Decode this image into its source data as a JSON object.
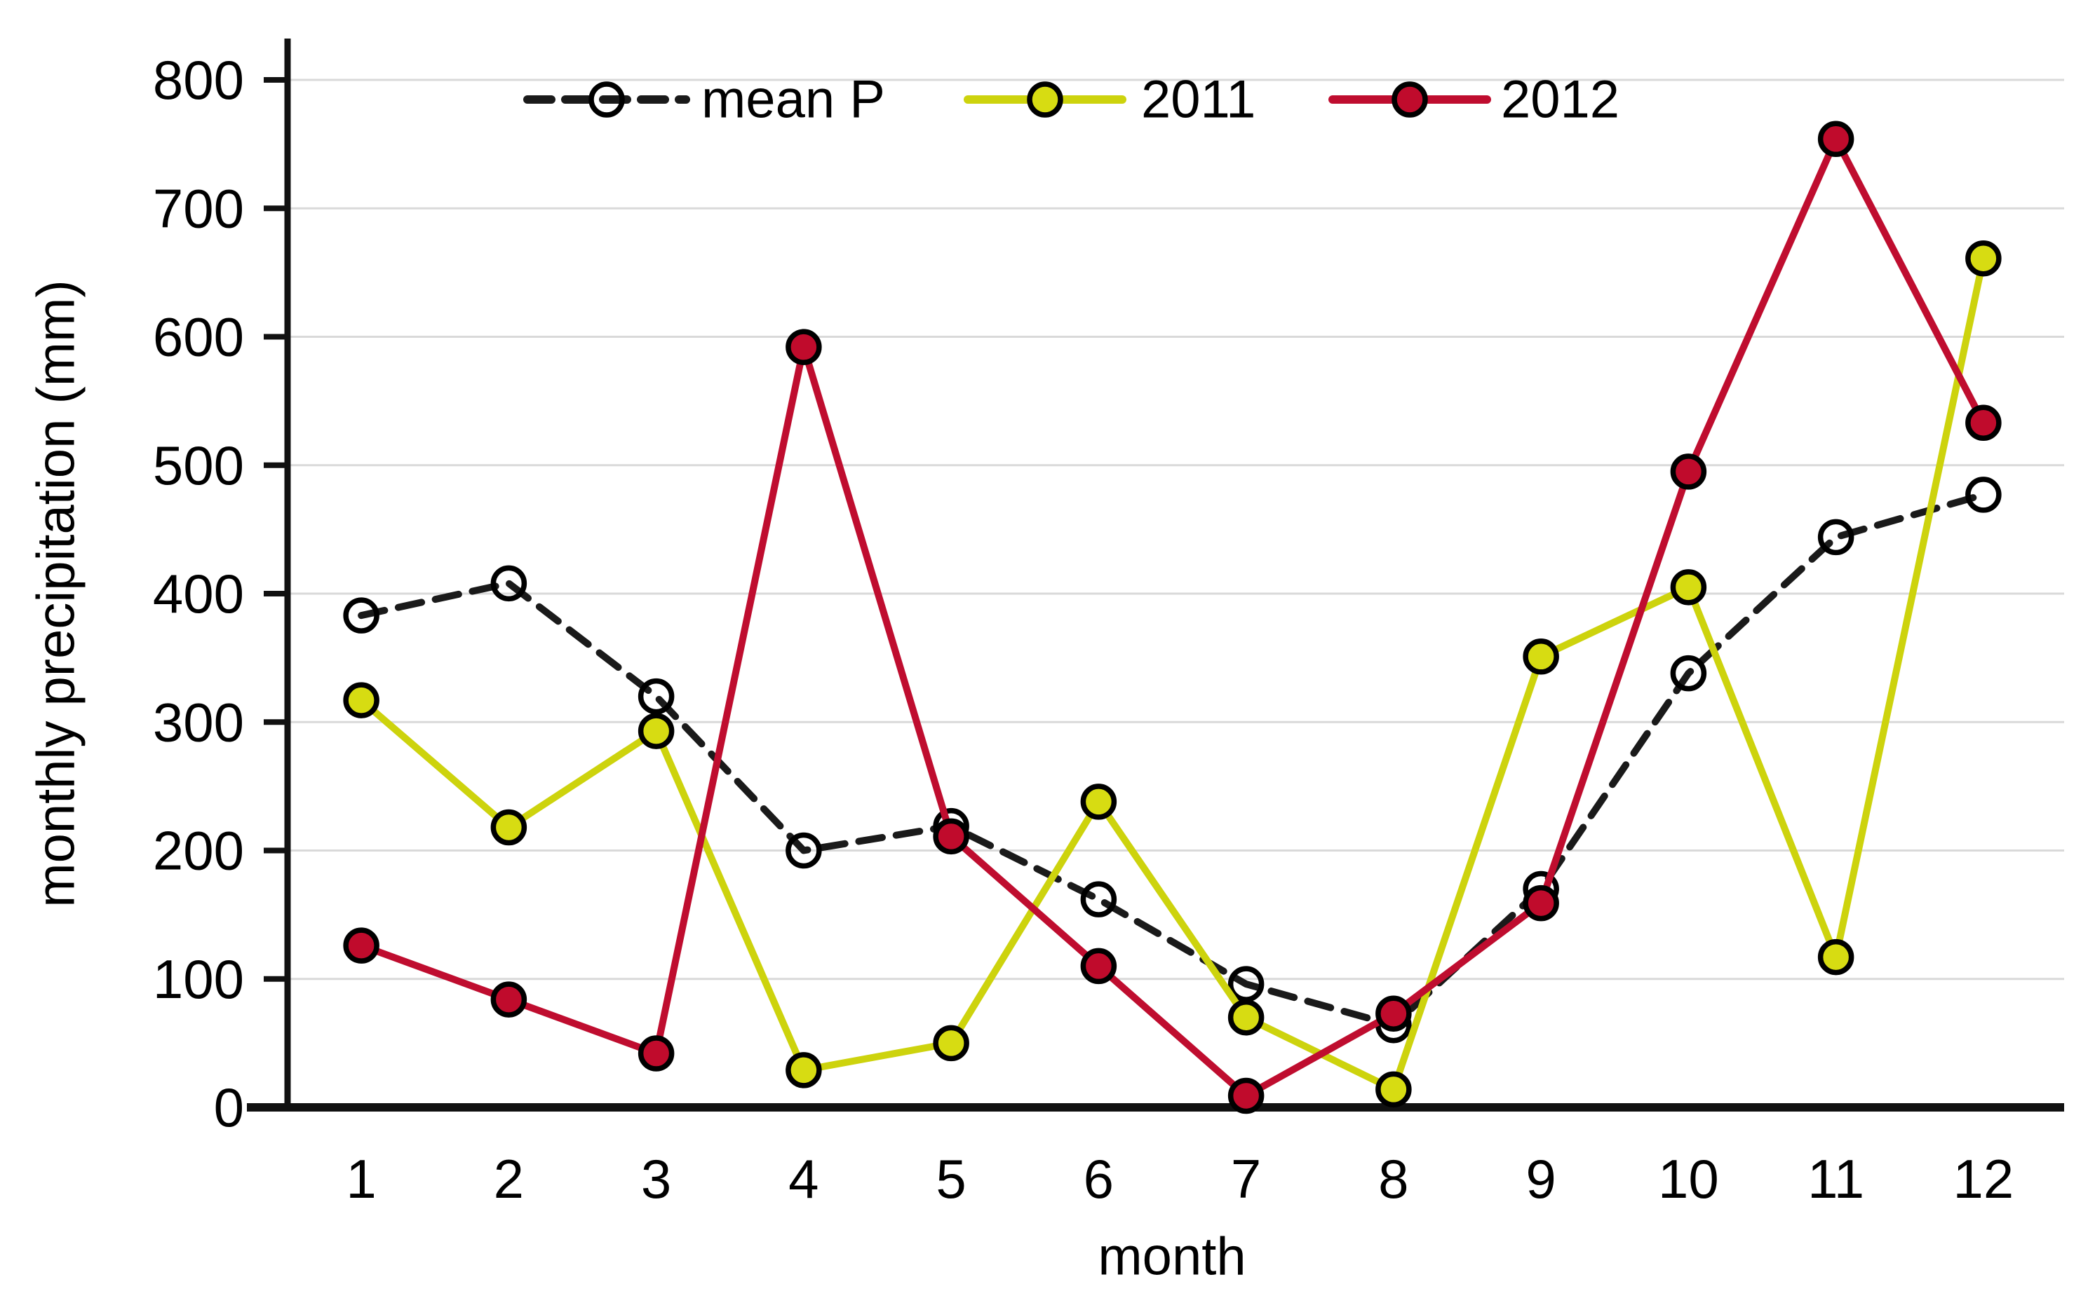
{
  "figure": {
    "background": "#ffffff"
  },
  "colors": {
    "mean_p_line": "#1a1a1a",
    "y2011_line": "#cdd30d",
    "y2011_marker_fill": "#d7dc12",
    "y2012_line": "#bf0d2f",
    "y2012_marker_fill": "#c00b2c",
    "gridline": "#d9d9d9",
    "axis": "#111111",
    "text": "#000000"
  },
  "legend": {
    "items": [
      "mean P",
      "2011",
      "2012"
    ]
  },
  "y_axis": {
    "title": "monthly precipitation (mm)",
    "tick_labels": [
      "0",
      "100",
      "200",
      "300",
      "400",
      "500",
      "600",
      "700",
      "800"
    ]
  },
  "x_axis": {
    "title": "month",
    "tick_labels": [
      "1",
      "2",
      "3",
      "4",
      "5",
      "6",
      "7",
      "8",
      "9",
      "10",
      "11",
      "12"
    ]
  },
  "chart_data": {
    "type": "line",
    "x": [
      1,
      2,
      3,
      4,
      5,
      6,
      7,
      8,
      9,
      10,
      11,
      12
    ],
    "series": [
      {
        "name": "mean P",
        "color": "#1a1a1a",
        "line_style": "dashed",
        "marker": "open-circle",
        "marker_fill": "none",
        "values": [
          383,
          408,
          320,
          200,
          219,
          162,
          96,
          64,
          170,
          338,
          444,
          477
        ]
      },
      {
        "name": "2011",
        "color": "#cdd30d",
        "line_style": "solid",
        "marker": "filled-circle",
        "marker_fill": "#d7dc12",
        "values": [
          317,
          218,
          293,
          29,
          50,
          238,
          70,
          14,
          351,
          405,
          117,
          661
        ]
      },
      {
        "name": "2012",
        "color": "#bf0d2f",
        "line_style": "solid",
        "marker": "filled-circle",
        "marker_fill": "#c00b2c",
        "values": [
          126,
          84,
          42,
          592,
          211,
          110,
          9,
          73,
          159,
          495,
          754,
          533
        ]
      }
    ],
    "title": "",
    "xlabel": "month",
    "ylabel": "monthly precipitation (mm)",
    "ylim": [
      0,
      800
    ],
    "y_tick_step": 100,
    "grid": true,
    "legend_position": "top-center"
  }
}
